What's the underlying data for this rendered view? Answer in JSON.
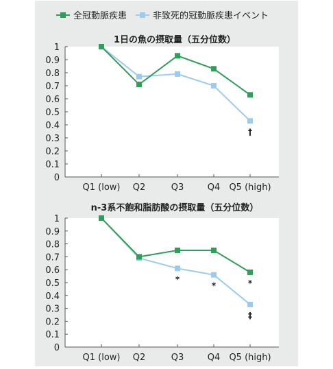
{
  "legend": {
    "series_all": "全冠動脈疾患",
    "series_nonfatal": "非致死的冠動脈疾患イベント"
  },
  "colors": {
    "background": "#e9ebeb",
    "plot_area": "#ffffff",
    "series_all": "#2e9e58",
    "series_nonfatal": "#9ccbee"
  },
  "chart_data": [
    {
      "type": "line",
      "title": "1日の魚の摂取量（五分位数）",
      "categories": [
        "Q1 (low)",
        "Q2",
        "Q3",
        "Q4",
        "Q5 (high)"
      ],
      "ylim": [
        0,
        1
      ],
      "yticks": [
        "0",
        "0.1",
        "0.2",
        "0.3",
        "0.4",
        "0.5",
        "0.6",
        "0.7",
        "0.8",
        "0.9",
        "1"
      ],
      "grid": false,
      "legend": "top",
      "series": [
        {
          "name": "全冠動脈疾患",
          "color": "#2e9e58",
          "values": [
            1.0,
            0.71,
            0.93,
            0.83,
            0.63
          ]
        },
        {
          "name": "非致死的冠動脈疾患イベント",
          "color": "#9ccbee",
          "values": [
            1.0,
            0.77,
            0.79,
            0.7,
            0.43
          ]
        }
      ],
      "annotations": [
        "",
        "",
        "",
        "",
        "†"
      ]
    },
    {
      "type": "line",
      "title": "n-3系不飽和脂肪酸の摂取量（五分位数）",
      "categories": [
        "Q1 (low)",
        "Q2",
        "Q3",
        "Q4",
        "Q5 (high)"
      ],
      "ylim": [
        0,
        1
      ],
      "yticks": [
        "0",
        "0.1",
        "0.2",
        "0.3",
        "0.4",
        "0.5",
        "0.6",
        "0.7",
        "0.8",
        "0.9",
        "1"
      ],
      "grid": false,
      "legend": "top",
      "series": [
        {
          "name": "全冠動脈疾患",
          "color": "#2e9e58",
          "values": [
            1.0,
            0.7,
            0.75,
            0.75,
            0.58
          ]
        },
        {
          "name": "非致死的冠動脈疾患イベント",
          "color": "#9ccbee",
          "values": [
            1.0,
            0.69,
            0.61,
            0.56,
            0.33
          ]
        }
      ],
      "annotations": [
        "",
        "",
        "*",
        "*",
        "‡"
      ],
      "annotations_upper": [
        "",
        "",
        "",
        "",
        "*"
      ]
    }
  ]
}
